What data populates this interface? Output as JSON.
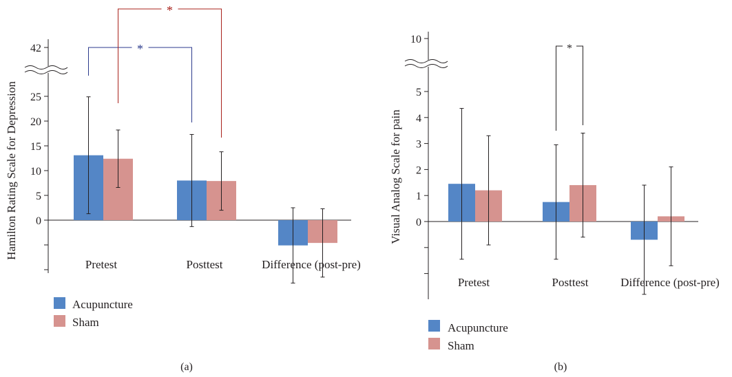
{
  "colors": {
    "acupuncture": "#5486c6",
    "sham": "#d6938f",
    "axis": "#231f20",
    "sig_blue": "#2b3a8c",
    "sig_red": "#a8201a"
  },
  "chart_data": [
    {
      "type": "bar",
      "panel_label": "(a)",
      "ylabel": "Hamilton Rating Scale for Depression",
      "y_ticks": [
        "0",
        "5",
        "10",
        "15",
        "20",
        "25"
      ],
      "y_break_tick": "42",
      "y_axis_break": true,
      "categories": [
        "Pretest",
        "Posttest",
        "Difference (post-pre)"
      ],
      "series": [
        {
          "name": "Acupuncture",
          "values": [
            13.1,
            8.0,
            -5.1
          ],
          "error": [
            11.8,
            9.3,
            7.6
          ]
        },
        {
          "name": "Sham",
          "values": [
            12.4,
            7.9,
            -4.6
          ],
          "error": [
            5.8,
            5.9,
            6.9
          ]
        }
      ],
      "significance": [
        {
          "label": "*",
          "color": "blue",
          "between": "Acupuncture Pretest vs Acupuncture Posttest"
        },
        {
          "label": "*",
          "color": "red",
          "between": "Sham Pretest vs Sham Posttest"
        }
      ],
      "legend": [
        "Acupuncture",
        "Sham"
      ],
      "legend_position": "bottom-left"
    },
    {
      "type": "bar",
      "panel_label": "(b)",
      "ylabel": "Visual Analog Scale for pain",
      "y_ticks": [
        "0",
        "1",
        "2",
        "3",
        "4",
        "5"
      ],
      "y_break_tick": "10",
      "y_axis_break": true,
      "categories": [
        "Pretest",
        "Posttest",
        "Difference (post-pre)"
      ],
      "series": [
        {
          "name": "Acupuncture",
          "values": [
            1.45,
            0.75,
            -0.7
          ],
          "error": [
            2.9,
            2.2,
            2.1
          ]
        },
        {
          "name": "Sham",
          "values": [
            1.2,
            1.4,
            0.2
          ],
          "error": [
            2.1,
            2.0,
            1.9
          ]
        }
      ],
      "significance": [
        {
          "label": "*",
          "color": "black",
          "between": "Acupuncture Posttest vs Sham Posttest"
        }
      ],
      "legend": [
        "Acupuncture",
        "Sham"
      ],
      "legend_position": "bottom-left"
    }
  ]
}
